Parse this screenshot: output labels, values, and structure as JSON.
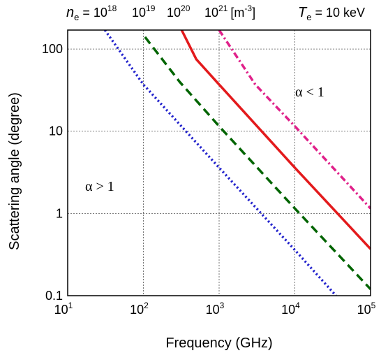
{
  "chart_data": {
    "type": "line",
    "xscale": "log",
    "yscale": "log",
    "xlabel": "Frequency (GHz)",
    "ylabel": "Scattering angle (degree)",
    "xlim": [
      10,
      100000
    ],
    "ylim": [
      0.1,
      170
    ],
    "grid": true,
    "x_ticks": [
      {
        "base": "10",
        "exp": "1"
      },
      {
        "base": "10",
        "exp": "2"
      },
      {
        "base": "10",
        "exp": "3"
      },
      {
        "base": "10",
        "exp": "4"
      },
      {
        "base": "10",
        "exp": "5"
      }
    ],
    "y_ticks": [
      "0.1",
      "1",
      "10",
      "100"
    ],
    "series": [
      {
        "density_base": "10",
        "density_exp": "18",
        "prefix": "n",
        "prefix_sub": "e",
        "prefix_eq": " = ",
        "color": "#2222cc",
        "linestyle": "dotted",
        "x": [
          31,
          100,
          1000,
          10000,
          35000
        ],
        "y": [
          170,
          37,
          3.6,
          0.36,
          0.1
        ]
      },
      {
        "density_base": "10",
        "density_exp": "19",
        "color": "#006400",
        "linestyle": "dashed",
        "x": [
          105,
          300,
          1000,
          10000,
          100000
        ],
        "y": [
          140,
          40,
          11.5,
          1.15,
          0.12
        ]
      },
      {
        "density_base": "10",
        "density_exp": "20",
        "color": "#e31a1c",
        "linestyle": "solid",
        "x": [
          320,
          500,
          1000,
          10000,
          100000
        ],
        "y": [
          170,
          75,
          37,
          3.6,
          0.37
        ]
      },
      {
        "density_base": "10",
        "density_exp": "21",
        "unit": "[m",
        "unit_sup": "-3",
        "unit_close": "]",
        "color": "#e0218a",
        "linestyle": "dashdot",
        "x": [
          1000,
          3000,
          10000,
          100000
        ],
        "y": [
          170,
          37,
          11.5,
          1.15
        ]
      }
    ],
    "annotations": {
      "te_symbol": "T",
      "te_sub": "e",
      "te_value": " = 10 keV",
      "alpha_low": "α < 1",
      "alpha_high": "α > 1"
    }
  }
}
